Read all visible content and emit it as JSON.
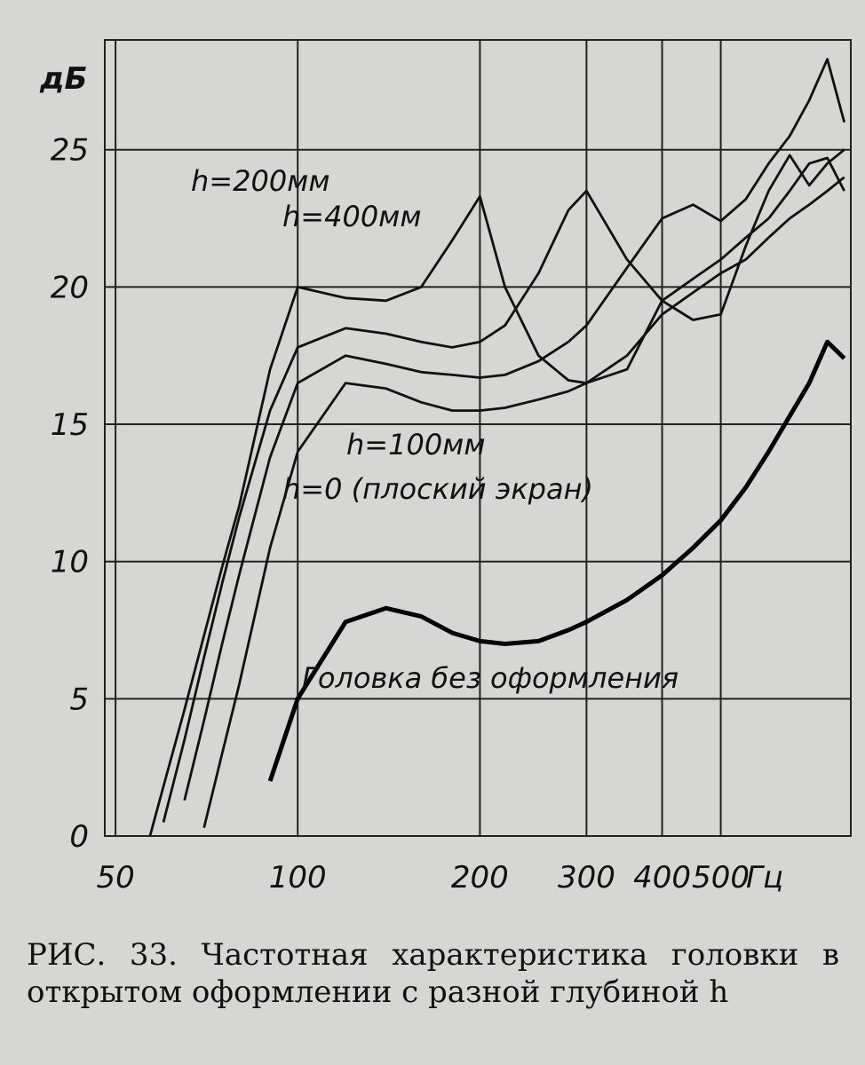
{
  "chart_data": {
    "type": "line",
    "ylabel": "дБ",
    "xlabel": "Гц",
    "x": [
      57,
      60,
      65,
      70,
      75,
      80,
      90,
      100,
      120,
      140,
      160,
      180,
      200,
      220,
      250,
      280,
      300,
      350,
      400,
      450,
      500,
      550,
      600,
      650,
      700,
      750,
      800
    ],
    "series": [
      {
        "name": "h=200мм",
        "color": "#111111",
        "values": [
          0,
          1.8,
          4.6,
          7.3,
          9.8,
          12,
          17,
          20,
          19.6,
          19.5,
          20,
          21.7,
          23.3,
          20,
          17.5,
          16.6,
          16.5,
          17,
          19.5,
          20.3,
          21,
          21.8,
          22.5,
          23.5,
          24.5,
          24.7,
          23.5
        ]
      },
      {
        "name": "h=400мм",
        "color": "#111111",
        "values": [
          null,
          0.5,
          3.5,
          6.5,
          9.2,
          11.6,
          15.5,
          17.8,
          18.5,
          18.3,
          18,
          17.8,
          18,
          18.6,
          20.5,
          22.8,
          23.5,
          21,
          19.5,
          18.8,
          19,
          21.5,
          23.5,
          24.8,
          23.7,
          24.5,
          25
        ]
      },
      {
        "name": "h=100мм",
        "color": "#111111",
        "values": [
          null,
          null,
          1.3,
          4.2,
          7,
          9.5,
          13.8,
          16.5,
          17.5,
          17.2,
          16.9,
          16.8,
          16.7,
          16.8,
          17.3,
          18,
          18.6,
          20.7,
          22.5,
          23,
          22.4,
          23.2,
          24.5,
          25.5,
          26.8,
          28.3,
          26
        ]
      },
      {
        "name": "h=0 (плоский экран)",
        "color": "#111111",
        "values": [
          null,
          null,
          null,
          0.3,
          3,
          5.5,
          10.5,
          14,
          16.5,
          16.3,
          15.8,
          15.5,
          15.5,
          15.6,
          15.9,
          16.2,
          16.5,
          17.5,
          19,
          19.8,
          20.5,
          21,
          21.8,
          22.5,
          23,
          23.5,
          24
        ]
      },
      {
        "name": "Головка без оформления",
        "color": "#000000",
        "values": [
          null,
          null,
          null,
          null,
          null,
          null,
          2,
          5,
          7.8,
          8.3,
          8,
          7.4,
          7.1,
          7,
          7.1,
          7.5,
          7.8,
          8.6,
          9.5,
          10.5,
          11.5,
          12.7,
          14,
          15.3,
          16.5,
          18,
          17.4
        ]
      }
    ],
    "xscale": "log",
    "xlim": [
      48,
      820
    ],
    "xticks": [
      50,
      100,
      200,
      300,
      400,
      500
    ],
    "ylim": [
      0,
      29
    ],
    "yticks": [
      0,
      5,
      10,
      15,
      20,
      25
    ],
    "grid": true,
    "caption": "РИС. 33. Частотная характеристика головки в открытом оформлении с разной глубиной h"
  }
}
